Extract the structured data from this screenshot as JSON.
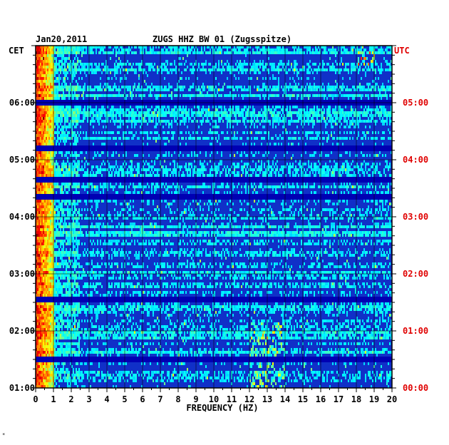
{
  "header": {
    "date": "Jan20,2011",
    "title": "ZUGS HHZ BW 01 (Zugsspitze)",
    "left_tz": "CET",
    "right_tz": "UTC"
  },
  "colors": {
    "background_blue": "#1030c8",
    "deep_blue": "#0000a0",
    "axis_red": "#e00000",
    "grid": "#000000",
    "hot_yellow": "#e8f000",
    "hot_red": "#e00000",
    "cyan": "#20d0f0"
  },
  "corner_mark": "*",
  "chart_data": {
    "type": "heatmap",
    "title": "ZUGS HHZ BW 01 (Zugsspitze)",
    "subtitle": "Jan20,2011",
    "xlabel": "FREQUENCY (HZ)",
    "xlim": [
      0,
      20
    ],
    "x_ticks": [
      "0",
      "1",
      "2",
      "3",
      "4",
      "5",
      "6",
      "7",
      "8",
      "9",
      "10",
      "11",
      "12",
      "13",
      "14",
      "15",
      "16",
      "17",
      "18",
      "19",
      "20"
    ],
    "y_left_label": "CET",
    "y_left_ticks": [
      "06:00",
      "05:00",
      "04:00",
      "03:00",
      "02:00",
      "01:00"
    ],
    "y_right_label": "UTC",
    "y_right_ticks": [
      "05:00",
      "04:00",
      "03:00",
      "02:00",
      "01:00",
      "00:00"
    ],
    "time_range_cet_hours": [
      1,
      7
    ],
    "grid": true,
    "colormap": "jet",
    "dominant_energy_band_hz": [
      0,
      1
    ],
    "notable_features": [
      {
        "freq_hz": [
          18,
          19
        ],
        "time_cet": "06:40-06:55",
        "level": "high"
      },
      {
        "freq_hz": [
          12,
          14
        ],
        "time_cet": "01:00-02:10",
        "level": "moderate"
      },
      {
        "freq_hz": [
          0.5,
          2
        ],
        "time_cet": "06:00",
        "level": "moderate"
      }
    ],
    "dark_gaps_cet": [
      "06:00",
      "05:12",
      "04:38",
      "04:22",
      "02:32",
      "01:30"
    ]
  }
}
